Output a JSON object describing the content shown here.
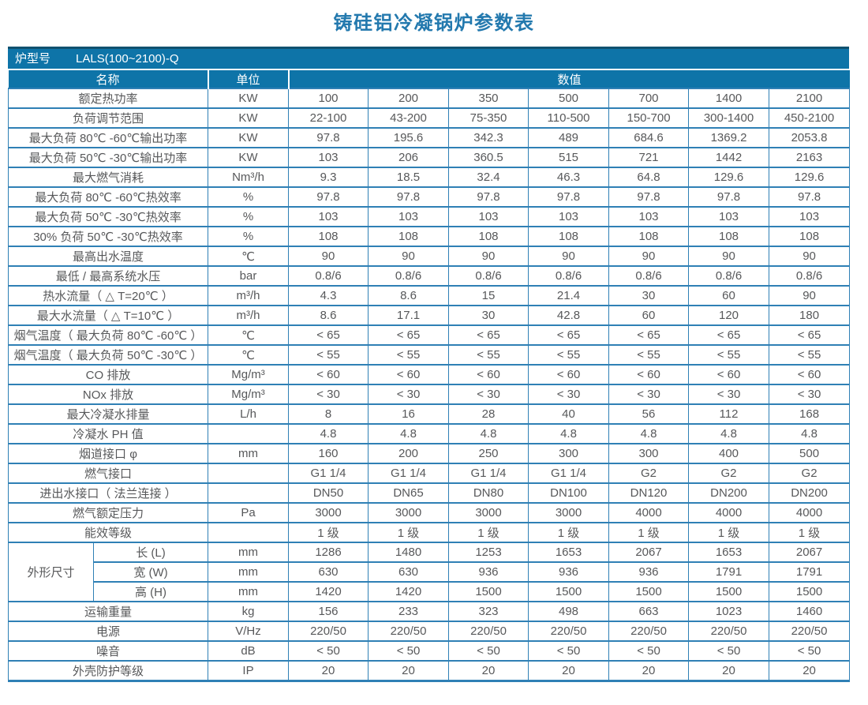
{
  "page_title": "铸硅铝冷凝锅炉参数表",
  "colors": {
    "title_blue": "#2379ae",
    "header_blue": "#0e74a8",
    "border_blue": "#2f80b5",
    "model_bar_top_border": "#10516f",
    "cell_text_gray": "#57585a"
  },
  "table": {
    "model_label": "炉型号",
    "model_value": "LALS(100~2100)-Q",
    "header": {
      "name": "名称",
      "unit": "单位",
      "value": "数值"
    },
    "dimension_group_label": "外形尺寸",
    "rows": [
      {
        "name": "额定热功率",
        "unit": "KW",
        "values": [
          "100",
          "200",
          "350",
          "500",
          "700",
          "1400",
          "2100"
        ]
      },
      {
        "name": "负荷调节范围",
        "unit": "KW",
        "values": [
          "22-100",
          "43-200",
          "75-350",
          "110-500",
          "150-700",
          "300-1400",
          "450-2100"
        ]
      },
      {
        "name": "最大负荷 80℃ -60℃输出功率",
        "unit": "KW",
        "values": [
          "97.8",
          "195.6",
          "342.3",
          "489",
          "684.6",
          "1369.2",
          "2053.8"
        ]
      },
      {
        "name": "最大负荷 50℃ -30℃输出功率",
        "unit": "KW",
        "values": [
          "103",
          "206",
          "360.5",
          "515",
          "721",
          "1442",
          "2163"
        ]
      },
      {
        "name": "最大燃气消耗",
        "unit": "Nm³/h",
        "values": [
          "9.3",
          "18.5",
          "32.4",
          "46.3",
          "64.8",
          "129.6",
          "129.6"
        ]
      },
      {
        "name": "最大负荷 80℃ -60℃热效率",
        "unit": "%",
        "values": [
          "97.8",
          "97.8",
          "97.8",
          "97.8",
          "97.8",
          "97.8",
          "97.8"
        ]
      },
      {
        "name": "最大负荷 50℃ -30℃热效率",
        "unit": "%",
        "values": [
          "103",
          "103",
          "103",
          "103",
          "103",
          "103",
          "103"
        ]
      },
      {
        "name": "30% 负荷 50℃ -30℃热效率",
        "unit": "%",
        "values": [
          "108",
          "108",
          "108",
          "108",
          "108",
          "108",
          "108"
        ]
      },
      {
        "name": "最高出水温度",
        "unit": "℃",
        "values": [
          "90",
          "90",
          "90",
          "90",
          "90",
          "90",
          "90"
        ]
      },
      {
        "name": "最低 / 最高系统水压",
        "unit": "bar",
        "values": [
          "0.8/6",
          "0.8/6",
          "0.8/6",
          "0.8/6",
          "0.8/6",
          "0.8/6",
          "0.8/6"
        ]
      },
      {
        "name": "热水流量（ △ T=20℃ ）",
        "unit": "m³/h",
        "values": [
          "4.3",
          "8.6",
          "15",
          "21.4",
          "30",
          "60",
          "90"
        ]
      },
      {
        "name": "最大水流量（ △ T=10℃ ）",
        "unit": "m³/h",
        "values": [
          "8.6",
          "17.1",
          "30",
          "42.8",
          "60",
          "120",
          "180"
        ]
      },
      {
        "name": "烟气温度（ 最大负荷 80℃ -60℃ ）",
        "unit": "℃",
        "values": [
          "< 65",
          "< 65",
          "< 65",
          "< 65",
          "< 65",
          "< 65",
          "< 65"
        ]
      },
      {
        "name": "烟气温度（ 最大负荷 50℃ -30℃ ）",
        "unit": "℃",
        "values": [
          "< 55",
          "< 55",
          "< 55",
          "< 55",
          "< 55",
          "< 55",
          "< 55"
        ]
      },
      {
        "name": "CO 排放",
        "unit": "Mg/m³",
        "values": [
          "< 60",
          "< 60",
          "< 60",
          "< 60",
          "< 60",
          "< 60",
          "< 60"
        ]
      },
      {
        "name": "NOx 排放",
        "unit": "Mg/m³",
        "values": [
          "< 30",
          "< 30",
          "< 30",
          "< 30",
          "< 30",
          "< 30",
          "< 30"
        ]
      },
      {
        "name": "最大冷凝水排量",
        "unit": "L/h",
        "values": [
          "8",
          "16",
          "28",
          "40",
          "56",
          "112",
          "168"
        ]
      },
      {
        "name": "冷凝水 PH 值",
        "unit": "",
        "values": [
          "4.8",
          "4.8",
          "4.8",
          "4.8",
          "4.8",
          "4.8",
          "4.8"
        ]
      },
      {
        "name": "烟道接口 φ",
        "unit": "mm",
        "values": [
          "160",
          "200",
          "250",
          "300",
          "300",
          "400",
          "500"
        ]
      },
      {
        "name": "燃气接口",
        "unit": "",
        "values": [
          "G1 1/4",
          "G1 1/4",
          "G1 1/4",
          "G1 1/4",
          "G2",
          "G2",
          "G2"
        ]
      },
      {
        "name": "进出水接口（ 法兰连接 ）",
        "unit": "",
        "values": [
          "DN50",
          "DN65",
          "DN80",
          "DN100",
          "DN120",
          "DN200",
          "DN200"
        ]
      },
      {
        "name": "燃气额定压力",
        "unit": "Pa",
        "values": [
          "3000",
          "3000",
          "3000",
          "3000",
          "4000",
          "4000",
          "4000"
        ]
      },
      {
        "name": "能效等级",
        "unit": "",
        "values": [
          "1 级",
          "1 级",
          "1 级",
          "1 级",
          "1 级",
          "1 级",
          "1 级"
        ]
      },
      {
        "group": "外形尺寸",
        "name": "长 (L)",
        "unit": "mm",
        "values": [
          "1286",
          "1480",
          "1253",
          "1653",
          "2067",
          "1653",
          "2067"
        ]
      },
      {
        "group_cont": true,
        "name": "宽 (W)",
        "unit": "mm",
        "values": [
          "630",
          "630",
          "936",
          "936",
          "936",
          "1791",
          "1791"
        ]
      },
      {
        "group_cont": true,
        "name": "高 (H)",
        "unit": "mm",
        "values": [
          "1420",
          "1420",
          "1500",
          "1500",
          "1500",
          "1500",
          "1500"
        ]
      },
      {
        "name": "运输重量",
        "unit": "kg",
        "values": [
          "156",
          "233",
          "323",
          "498",
          "663",
          "1023",
          "1460"
        ]
      },
      {
        "name": "电源",
        "unit": "V/Hz",
        "values": [
          "220/50",
          "220/50",
          "220/50",
          "220/50",
          "220/50",
          "220/50",
          "220/50"
        ]
      },
      {
        "name": "噪音",
        "unit": "dB",
        "values": [
          "< 50",
          "< 50",
          "< 50",
          "< 50",
          "< 50",
          "< 50",
          "< 50"
        ]
      },
      {
        "name": "外壳防护等级",
        "unit": "IP",
        "values": [
          "20",
          "20",
          "20",
          "20",
          "20",
          "20",
          "20"
        ]
      }
    ]
  }
}
